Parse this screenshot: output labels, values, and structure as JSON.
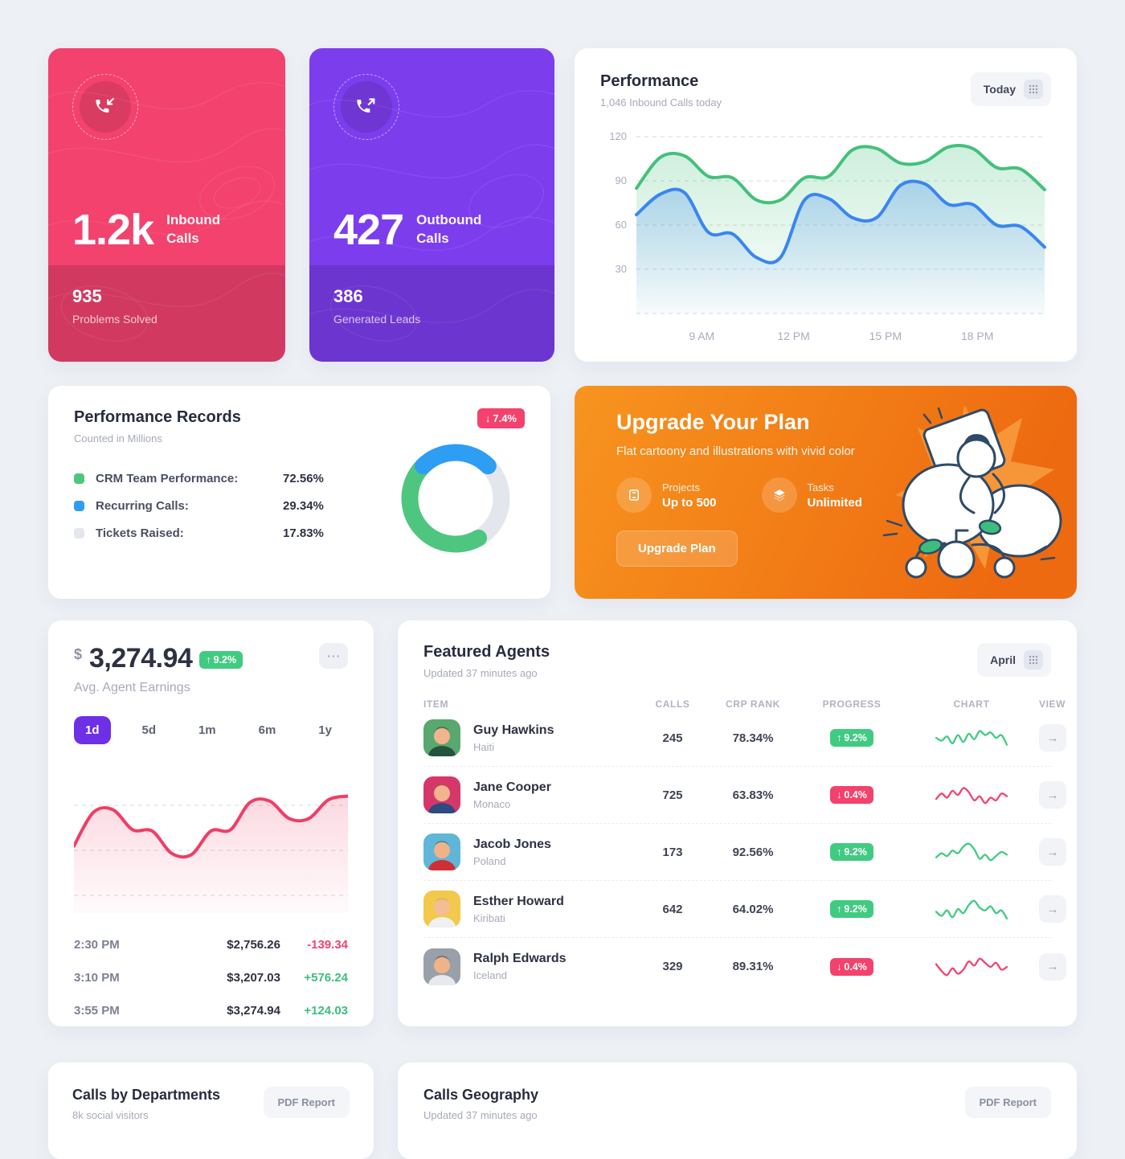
{
  "theme": {
    "page_bg": "#edf0f5",
    "pink": "#f2426d",
    "purple": "#7c3ded",
    "accent_purple": "#6e30e7",
    "green": "#41cb82",
    "red": "#f2426d",
    "line_green": "#44c17b",
    "line_blue": "#3a86f0",
    "area_pink": "#ef3e66",
    "orange_start": "#f7941f",
    "orange_end": "#ee6a10"
  },
  "icons": {
    "ellipsis": "⋯",
    "view_arrow": "→",
    "up_arrow": "↑",
    "down_arrow": "↓",
    "grid": "grid-dots",
    "inbound": "phone-arrow-in",
    "outbound": "phone-arrow-out"
  },
  "stat_cards": [
    {
      "value": "1.2k",
      "label_line1": "Inbound",
      "label_line2": "Calls",
      "footer_value": "935",
      "footer_label": "Problems Solved"
    },
    {
      "value": "427",
      "label_line1": "Outbound",
      "label_line2": "Calls",
      "footer_value": "386",
      "footer_label": "Generated Leads"
    }
  ],
  "performance": {
    "title": "Performance",
    "subtitle": "1,046 Inbound Calls today",
    "range_button": "Today"
  },
  "records": {
    "title": "Performance Records",
    "subtitle": "Counted in Millions",
    "badge": {
      "arrow": "↓",
      "text": "7.4%",
      "dir": "down"
    }
  },
  "upgrade": {
    "title": "Upgrade Your Plan",
    "subtitle": "Flat cartoony and illustrations with vivid color",
    "features": [
      {
        "label": "Projects",
        "value": "Up to 500"
      },
      {
        "label": "Tasks",
        "value": "Unlimited"
      }
    ],
    "button": "Upgrade Plan"
  },
  "earnings": {
    "currency": "$",
    "amount": "3,274.94",
    "badge": {
      "arrow": "↑",
      "text": "9.2%",
      "dir": "up"
    },
    "subtitle": "Avg. Agent Earnings",
    "tabs": [
      {
        "label": "1d",
        "active": true
      },
      {
        "label": "5d",
        "active": false
      },
      {
        "label": "1m",
        "active": false
      },
      {
        "label": "6m",
        "active": false
      },
      {
        "label": "1y",
        "active": false
      }
    ],
    "rows": [
      {
        "time": "2:30 PM",
        "value": "$2,756.26",
        "delta": "-139.34",
        "dir": "down"
      },
      {
        "time": "3:10 PM",
        "value": "$3,207.03",
        "delta": "+576.24",
        "dir": "up"
      },
      {
        "time": "3:55 PM",
        "value": "$3,274.94",
        "delta": "+124.03",
        "dir": "up"
      }
    ]
  },
  "agents": {
    "title": "Featured Agents",
    "subtitle": "Updated 37 minutes ago",
    "range_button": "April",
    "columns": [
      "ITEM",
      "CALLS",
      "CRP RANK",
      "PROGRESS",
      "CHART",
      "VIEW"
    ],
    "rows": [
      {
        "name": "Guy Hawkins",
        "country": "Haiti",
        "calls": "245",
        "crp_rank": "78.34%",
        "progress": {
          "arrow": "↑",
          "text": "9.2%",
          "dir": "up"
        },
        "spark": {
          "color": "#41cb82",
          "values": [
            20,
            16,
            22,
            12,
            24,
            14,
            26,
            18,
            30,
            24,
            28,
            20,
            24,
            10
          ]
        },
        "avatar": {
          "bg": "#58a86f",
          "skin": "#f2b48c",
          "hair": "#55352a",
          "shirt": "#27523d"
        }
      },
      {
        "name": "Jane Cooper",
        "country": "Monaco",
        "calls": "725",
        "crp_rank": "63.83%",
        "progress": {
          "arrow": "↓",
          "text": "0.4%",
          "dir": "down"
        },
        "spark": {
          "color": "#f2426d",
          "values": [
            14,
            22,
            16,
            26,
            20,
            30,
            24,
            12,
            18,
            8,
            16,
            12,
            22,
            18
          ]
        },
        "avatar": {
          "bg": "#d6376a",
          "skin": "#f2b48c",
          "hair": "#a05a35",
          "shirt": "#2e4a80"
        }
      },
      {
        "name": "Jacob Jones",
        "country": "Poland",
        "calls": "173",
        "crp_rank": "92.56%",
        "progress": {
          "arrow": "↑",
          "text": "9.2%",
          "dir": "up"
        },
        "spark": {
          "color": "#41cb82",
          "values": [
            12,
            18,
            14,
            22,
            18,
            28,
            32,
            24,
            10,
            16,
            8,
            14,
            20,
            16
          ]
        },
        "avatar": {
          "bg": "#5fb6d9",
          "skin": "#f0b387",
          "hair": "#6d4326",
          "shirt": "#cf2f35"
        }
      },
      {
        "name": "Esther Howard",
        "country": "Kiribati",
        "calls": "642",
        "crp_rank": "64.02%",
        "progress": {
          "arrow": "↑",
          "text": "9.2%",
          "dir": "up"
        },
        "spark": {
          "color": "#41cb82",
          "values": [
            16,
            10,
            18,
            8,
            20,
            14,
            26,
            32,
            22,
            18,
            24,
            14,
            18,
            6
          ]
        },
        "avatar": {
          "bg": "#f2c94c",
          "skin": "#f3bd95",
          "hair": "#c99a5f",
          "shirt": "#eef0f2"
        }
      },
      {
        "name": "Ralph Edwards",
        "country": "Iceland",
        "calls": "329",
        "crp_rank": "89.31%",
        "progress": {
          "arrow": "↓",
          "text": "0.4%",
          "dir": "down"
        },
        "spark": {
          "color": "#f2426d",
          "values": [
            24,
            14,
            8,
            18,
            10,
            16,
            28,
            22,
            32,
            26,
            20,
            26,
            16,
            20
          ]
        },
        "avatar": {
          "bg": "#9aa0a9",
          "skin": "#f0b387",
          "hair": "#4d3a2c",
          "shirt": "#e7e9ee"
        }
      }
    ]
  },
  "departments": {
    "title": "Calls by Departments",
    "subtitle": "8k social visitors",
    "button": "PDF Report"
  },
  "geography": {
    "title": "Calls Geography",
    "subtitle": "Updated 37 minutes ago",
    "button": "PDF Report"
  },
  "chart_data": [
    {
      "id": "performance",
      "type": "line",
      "title": "Performance",
      "x_labels": [
        "9 AM",
        "12 PM",
        "15 PM",
        "18 PM"
      ],
      "y_ticks": [
        120,
        90,
        60,
        30
      ],
      "ylim": [
        0,
        130
      ],
      "grid": "dashed-horizontal",
      "legend_position": "none",
      "series": [
        {
          "name": "inbound",
          "color": "#44c17b",
          "values": [
            85,
            106,
            107,
            93,
            92,
            77,
            77,
            92,
            93,
            111,
            112,
            102,
            103,
            113,
            112,
            99,
            98,
            84
          ]
        },
        {
          "name": "outbound",
          "color": "#3a86f0",
          "values": [
            67,
            81,
            82,
            55,
            54,
            38,
            38,
            77,
            78,
            65,
            65,
            87,
            88,
            74,
            74,
            60,
            59,
            45
          ]
        }
      ]
    },
    {
      "id": "records-donut",
      "type": "donut",
      "segments": [
        {
          "label": "CRM Team Performance:",
          "value_label": "72.56%",
          "value": 72.56,
          "arc_fraction": 0.46,
          "start_angle": 150,
          "color": "#4fc680"
        },
        {
          "label": "Recurring Calls:",
          "value_label": "29.34%",
          "value": 29.34,
          "arc_fraction": 0.25,
          "start_angle": 315,
          "color": "#2e9df4"
        },
        {
          "label": "Tickets Raised:",
          "value_label": "17.83%",
          "value": 17.83,
          "arc_fraction": 0.29,
          "start_angle": 45,
          "color": "#e3e6ec"
        }
      ]
    },
    {
      "id": "earnings",
      "type": "area",
      "color": "#ef3e66",
      "ylim": [
        0,
        100
      ],
      "grid": "dashed-horizontal",
      "values": [
        50,
        77,
        79,
        63,
        62,
        44,
        43,
        62,
        63,
        85,
        86,
        72,
        72,
        87,
        90
      ]
    }
  ]
}
